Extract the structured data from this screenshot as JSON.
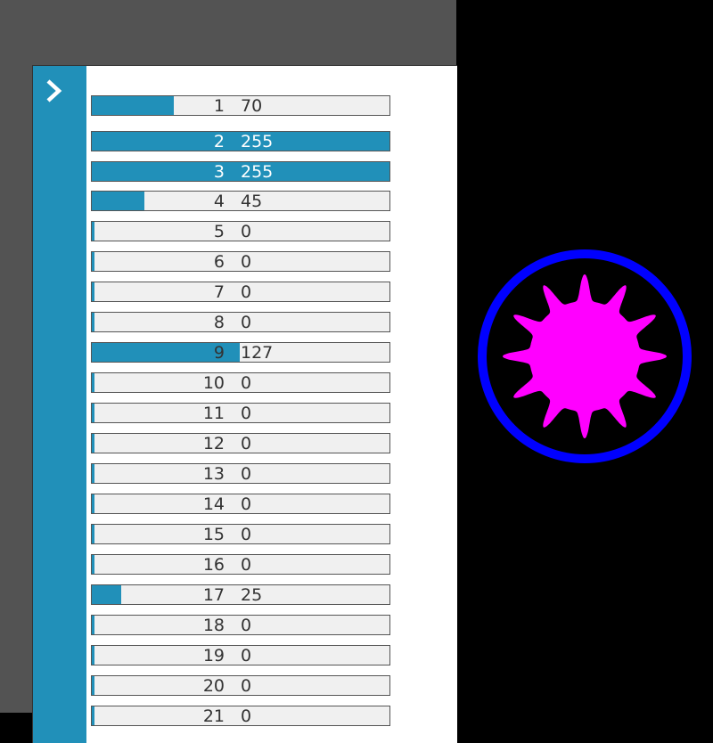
{
  "sidebar": {
    "toggle_icon": "chevron-right-icon"
  },
  "colors": {
    "accent": "#2190b9",
    "ring": "#0000ff",
    "star": "#ff00ff"
  },
  "max_value": 255,
  "rows": [
    {
      "label": "1",
      "value": 70
    },
    {
      "label": "2",
      "value": 255
    },
    {
      "label": "3",
      "value": 255
    },
    {
      "label": "4",
      "value": 45
    },
    {
      "label": "5",
      "value": 0
    },
    {
      "label": "6",
      "value": 0
    },
    {
      "label": "7",
      "value": 0
    },
    {
      "label": "8",
      "value": 0
    },
    {
      "label": "9",
      "value": 127
    },
    {
      "label": "10",
      "value": 0
    },
    {
      "label": "11",
      "value": 0
    },
    {
      "label": "12",
      "value": 0
    },
    {
      "label": "13",
      "value": 0
    },
    {
      "label": "14",
      "value": 0
    },
    {
      "label": "15",
      "value": 0
    },
    {
      "label": "16",
      "value": 0
    },
    {
      "label": "17",
      "value": 25
    },
    {
      "label": "18",
      "value": 0
    },
    {
      "label": "19",
      "value": 0
    },
    {
      "label": "20",
      "value": 0
    },
    {
      "label": "21",
      "value": 0
    }
  ],
  "artwork": {
    "shape": "12-point star inside ring",
    "points": 12
  }
}
